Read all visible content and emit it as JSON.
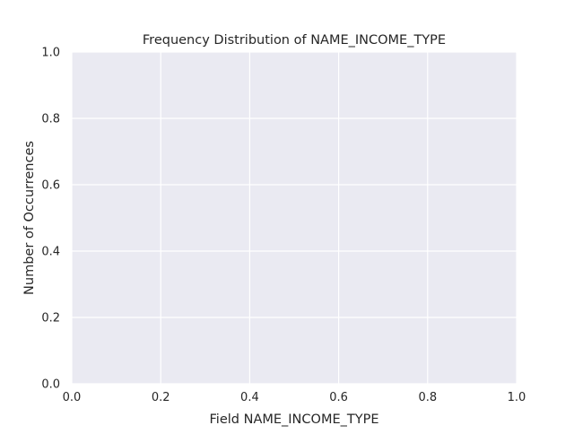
{
  "chart_data": {
    "type": "bar",
    "title": "Frequency Distribution of NAME_INCOME_TYPE",
    "xlabel": "Field NAME_INCOME_TYPE",
    "ylabel": "Number of Occurrences",
    "categories": [],
    "values": [],
    "xlim": [
      0.0,
      1.0
    ],
    "ylim": [
      0.0,
      1.0
    ],
    "x_ticks": [
      "0.0",
      "0.2",
      "0.4",
      "0.6",
      "0.8",
      "1.0"
    ],
    "y_ticks": [
      "0.0",
      "0.2",
      "0.4",
      "0.6",
      "0.8",
      "1.0"
    ],
    "grid": true,
    "colors": {
      "plot_background": "#eaeaf2",
      "grid": "#ffffff",
      "text": "#262626"
    }
  }
}
